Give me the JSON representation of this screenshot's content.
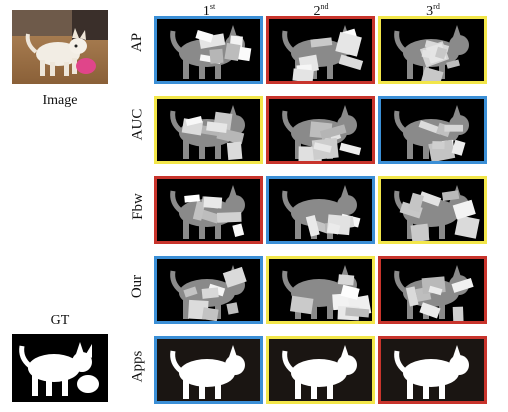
{
  "columns": [
    {
      "base": "1",
      "suffix": "st"
    },
    {
      "base": "2",
      "suffix": "nd"
    },
    {
      "base": "3",
      "suffix": "rd"
    }
  ],
  "left": {
    "image_label": "Image",
    "gt_label": "GT"
  },
  "rows": [
    {
      "label": "AP",
      "borders": [
        "blue",
        "red",
        "yellow"
      ]
    },
    {
      "label": "AUC",
      "borders": [
        "yellow",
        "red",
        "blue"
      ]
    },
    {
      "label": "Fbw",
      "borders": [
        "red",
        "blue",
        "yellow"
      ]
    },
    {
      "label": "Our",
      "borders": [
        "blue",
        "yellow",
        "red"
      ]
    },
    {
      "label": "Apps",
      "borders": [
        "blue",
        "yellow",
        "red"
      ]
    }
  ],
  "colors": {
    "blue": "#3b8fd6",
    "red": "#c8342c",
    "yellow": "#f2e64a"
  }
}
